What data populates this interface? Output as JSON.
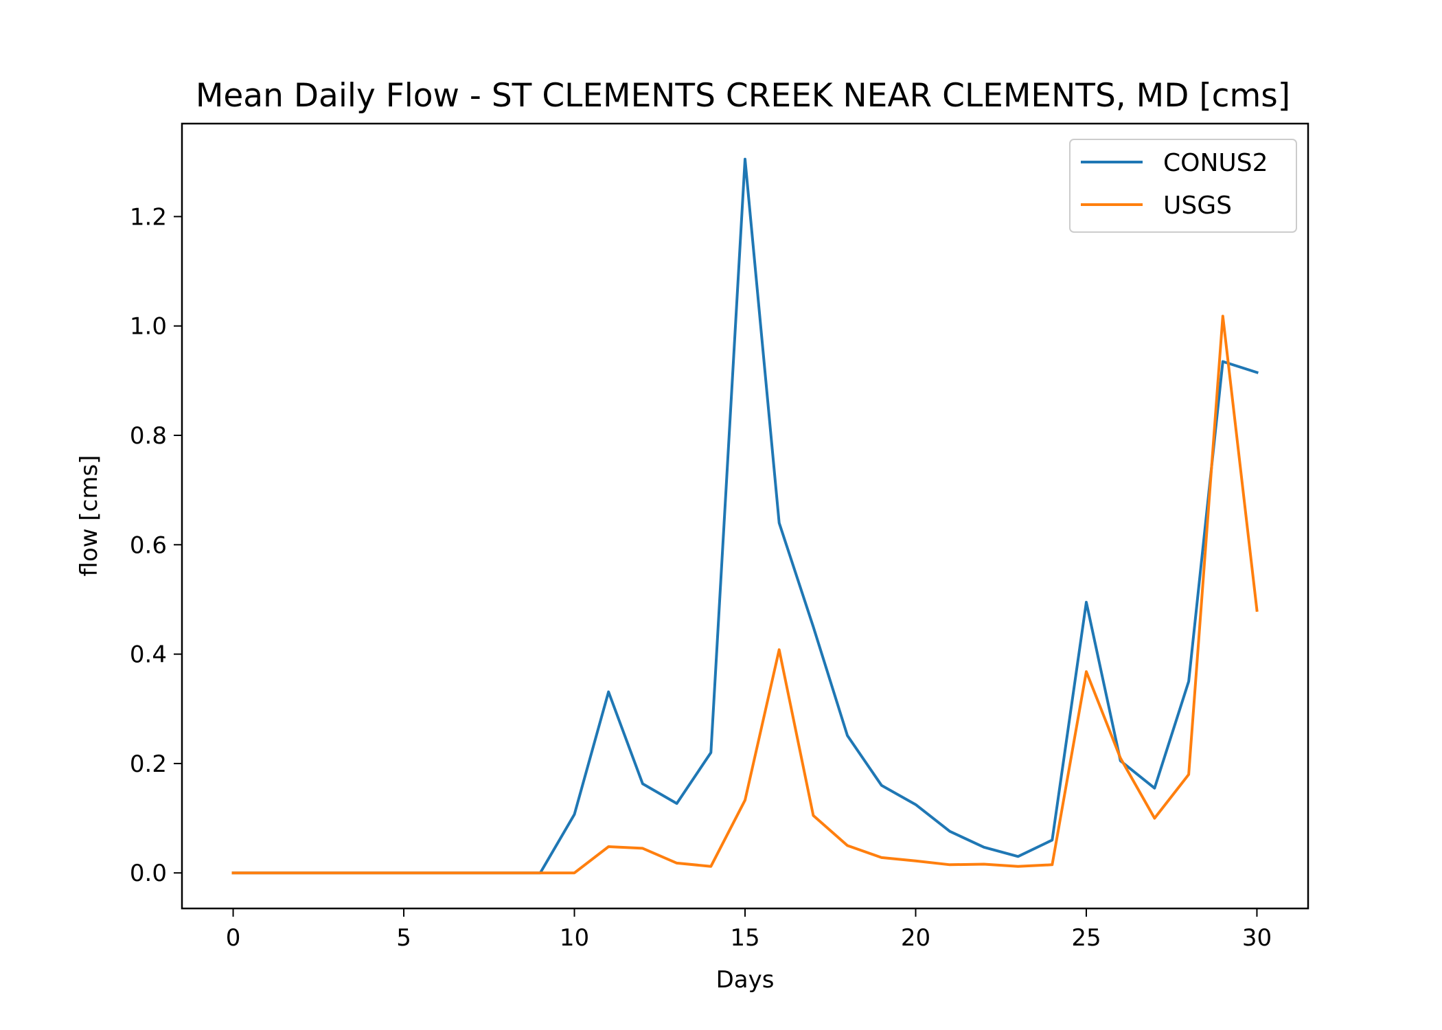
{
  "chart_data": {
    "type": "line",
    "title": "Mean Daily Flow - ST CLEMENTS CREEK NEAR CLEMENTS, MD [cms]",
    "xlabel": "Days",
    "ylabel": "flow [cms]",
    "xlim": [
      -1.5,
      31.5
    ],
    "ylim": [
      -0.065,
      1.37
    ],
    "xticks": [
      0,
      5,
      10,
      15,
      20,
      25,
      30
    ],
    "yticks": [
      0.0,
      0.2,
      0.4,
      0.6,
      0.8,
      1.0,
      1.2
    ],
    "ytick_labels": [
      "0.0",
      "0.2",
      "0.4",
      "0.6",
      "0.8",
      "1.0",
      "1.2"
    ],
    "xtick_labels": [
      "0",
      "5",
      "10",
      "15",
      "20",
      "25",
      "30"
    ],
    "legend_position": "top-right",
    "grid": false,
    "series": [
      {
        "name": "CONUS2",
        "color": "#1f77b4",
        "x": [
          0,
          1,
          2,
          3,
          4,
          5,
          6,
          7,
          8,
          9,
          10,
          11,
          12,
          13,
          14,
          15,
          16,
          17,
          18,
          19,
          20,
          21,
          22,
          23,
          24,
          25,
          26,
          27,
          28,
          29,
          30
        ],
        "values": [
          0,
          0,
          0,
          0,
          0,
          0,
          0,
          0,
          0,
          0,
          0.107,
          0.331,
          0.163,
          0.127,
          0.22,
          1.305,
          0.64,
          0.45,
          0.251,
          0.16,
          0.125,
          0.076,
          0.047,
          0.03,
          0.06,
          0.495,
          0.205,
          0.155,
          0.35,
          0.935,
          0.915
        ]
      },
      {
        "name": "USGS",
        "color": "#ff7f0e",
        "x": [
          0,
          1,
          2,
          3,
          4,
          5,
          6,
          7,
          8,
          9,
          10,
          11,
          12,
          13,
          14,
          15,
          16,
          17,
          18,
          19,
          20,
          21,
          22,
          23,
          24,
          25,
          26,
          27,
          28,
          29,
          30
        ],
        "values": [
          0,
          0,
          0,
          0,
          0,
          0,
          0,
          0,
          0,
          0,
          0,
          0.048,
          0.045,
          0.018,
          0.012,
          0.133,
          0.408,
          0.105,
          0.05,
          0.028,
          0.022,
          0.015,
          0.016,
          0.012,
          0.015,
          0.368,
          0.21,
          0.1,
          0.18,
          1.018,
          0.48
        ]
      }
    ]
  }
}
